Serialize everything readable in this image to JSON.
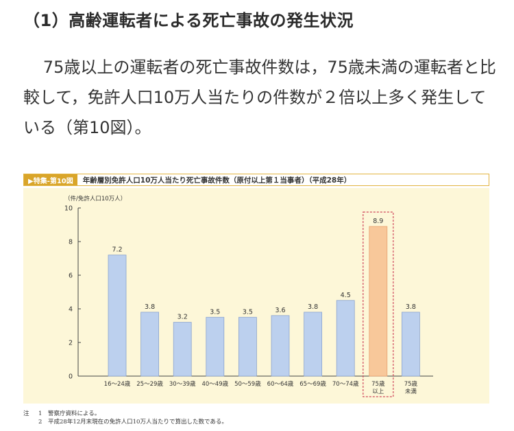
{
  "heading": "（1）高齢運転者による死亡事故の発生状況",
  "paragraph": "75歳以上の運転者の死亡事故件数は，75歳未満の運転者と比較して，免許人口10万人当たりの件数が２倍以上多く発生している（第10図）。",
  "figure": {
    "label": "▶特集-第10図",
    "title": "年齢層別免許人口10万人当たり死亡事故件数（原付以上第１当事者）（平成28年）"
  },
  "chart_data": {
    "type": "bar",
    "title": "年齢層別免許人口10万人当たり死亡事故件数（原付以上第１当事者）（平成28年）",
    "ylabel": "（件/免許人口10万人）",
    "xlabel": "",
    "ylim": [
      0,
      10
    ],
    "yticks": [
      "0",
      "2",
      "4",
      "6",
      "8",
      "10"
    ],
    "categories": [
      [
        "16～24歳"
      ],
      [
        "25～29歳"
      ],
      [
        "30～39歳"
      ],
      [
        "40～49歳"
      ],
      [
        "50～59歳"
      ],
      [
        "60～64歳"
      ],
      [
        "65～69歳"
      ],
      [
        "70～74歳"
      ],
      [
        "75歳",
        "以上"
      ],
      [
        "75歳",
        "未満"
      ]
    ],
    "values": [
      7.2,
      3.8,
      3.2,
      3.5,
      3.5,
      3.6,
      3.8,
      4.5,
      8.9,
      3.8
    ],
    "value_labels": [
      "7.2",
      "3.8",
      "3.2",
      "3.5",
      "3.5",
      "3.6",
      "3.8",
      "4.5",
      "8.9",
      "3.8"
    ],
    "highlight_index": 8,
    "colors": {
      "bar": "#bcd0ee",
      "bar_stroke": "#8aa3cf",
      "highlight": "#f8c89a",
      "highlight_stroke": "#e8a070",
      "dashed_box": "#d0455a"
    },
    "grid": false
  },
  "notes": {
    "head": "注",
    "items": [
      {
        "num": "1",
        "text": "警察庁資料による。"
      },
      {
        "num": "2",
        "text": "平成28年12月末現在の免許人口10万人当たりで算出した数である。"
      }
    ]
  }
}
